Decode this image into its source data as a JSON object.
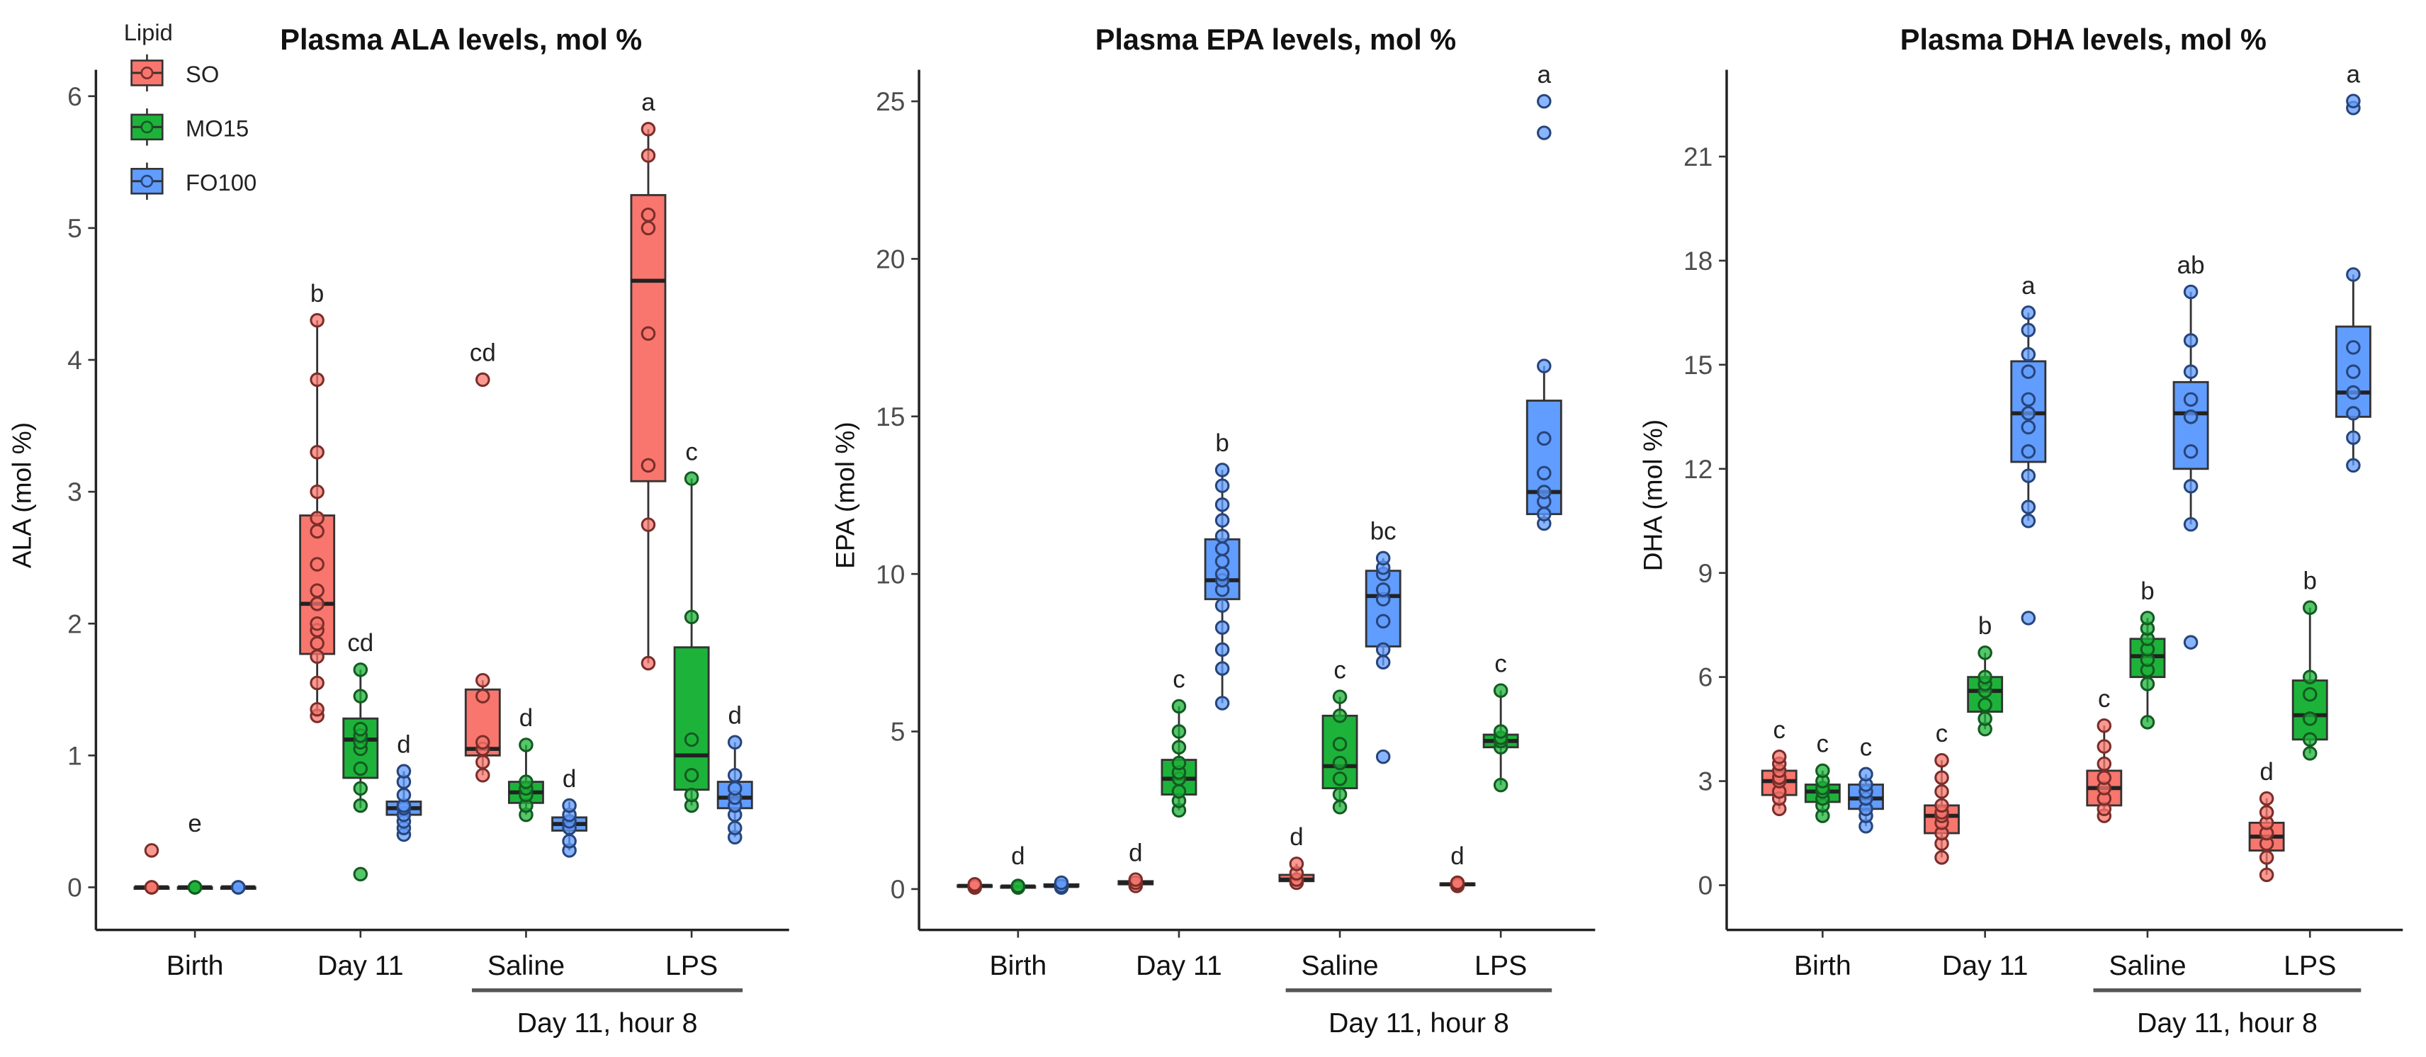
{
  "legend": {
    "title": "Lipid",
    "items": [
      {
        "name": "SO",
        "color": "#F8766D",
        "stroke": "#7A2E2A"
      },
      {
        "name": "MO15",
        "color": "#1DB33A",
        "stroke": "#145A22"
      },
      {
        "name": "FO100",
        "color": "#619CFF",
        "stroke": "#27457A"
      }
    ]
  },
  "x_groups": [
    "Birth",
    "Day 11",
    "Saline",
    "LPS"
  ],
  "x_bracket_label": "Day 11, hour 8",
  "chart_data": [
    {
      "type": "box",
      "title": "Plasma ALA levels, mol %",
      "ylabel": "ALA (mol %)",
      "ylim": [
        -0.3,
        6.2
      ],
      "yticks": [
        0,
        1,
        2,
        3,
        4,
        5,
        6
      ],
      "letters": [
        [
          null,
          "e",
          null
        ],
        [
          "b",
          "cd",
          "d"
        ],
        [
          "cd",
          "d",
          "d"
        ],
        [
          "a",
          "c",
          "d"
        ]
      ],
      "boxes": [
        [
          {
            "min": 0,
            "q1": 0,
            "median": 0,
            "q3": 0,
            "max": 0,
            "points": [
              0,
              0,
              0,
              0.28
            ]
          },
          {
            "min": 0,
            "q1": 0,
            "median": 0,
            "q3": 0,
            "max": 0,
            "points": [
              0,
              0,
              0
            ]
          },
          {
            "min": 0,
            "q1": 0,
            "median": 0,
            "q3": 0,
            "max": 0,
            "points": [
              0,
              0,
              0
            ]
          }
        ],
        [
          {
            "min": 1.3,
            "q1": 1.77,
            "median": 2.15,
            "q3": 2.82,
            "max": 4.3,
            "points": [
              1.3,
              1.35,
              1.55,
              1.75,
              1.85,
              1.95,
              2.0,
              2.15,
              2.25,
              2.45,
              2.7,
              2.8,
              3.0,
              3.3,
              3.85,
              4.3
            ]
          },
          {
            "min": 0.6,
            "q1": 0.83,
            "median": 1.12,
            "q3": 1.28,
            "max": 1.65,
            "points": [
              0.1,
              0.62,
              0.75,
              0.9,
              1.05,
              1.1,
              1.15,
              1.2,
              1.45,
              1.65
            ]
          },
          {
            "min": 0.4,
            "q1": 0.55,
            "median": 0.6,
            "q3": 0.65,
            "max": 0.88,
            "points": [
              0.4,
              0.45,
              0.5,
              0.55,
              0.6,
              0.62,
              0.7,
              0.8,
              0.88
            ]
          }
        ],
        [
          {
            "min": 0.85,
            "q1": 1.0,
            "median": 1.05,
            "q3": 1.5,
            "max": 1.57,
            "points": [
              0.85,
              0.95,
              1.05,
              1.1,
              1.45,
              1.57,
              3.85
            ]
          },
          {
            "min": 0.55,
            "q1": 0.64,
            "median": 0.72,
            "q3": 0.8,
            "max": 1.08,
            "points": [
              0.55,
              0.62,
              0.7,
              0.75,
              0.8,
              1.08
            ]
          },
          {
            "min": 0.28,
            "q1": 0.43,
            "median": 0.48,
            "q3": 0.53,
            "max": 0.65,
            "points": [
              0.28,
              0.35,
              0.45,
              0.5,
              0.55,
              0.62
            ]
          }
        ],
        [
          {
            "min": 1.7,
            "q1": 3.08,
            "median": 4.6,
            "q3": 5.25,
            "max": 5.75,
            "points": [
              1.7,
              2.75,
              3.2,
              4.2,
              5.0,
              5.1,
              5.55,
              5.75
            ]
          },
          {
            "min": 0.62,
            "q1": 0.74,
            "median": 1.0,
            "q3": 1.82,
            "max": 3.1,
            "points": [
              0.62,
              0.7,
              0.85,
              1.12,
              2.05,
              3.1
            ]
          },
          {
            "min": 0.38,
            "q1": 0.6,
            "median": 0.68,
            "q3": 0.8,
            "max": 1.1,
            "points": [
              0.38,
              0.45,
              0.55,
              0.62,
              0.68,
              0.75,
              0.85,
              1.1
            ]
          }
        ]
      ]
    },
    {
      "type": "box",
      "title": "Plasma EPA levels, mol %",
      "ylabel": "EPA (mol %)",
      "ylim": [
        -1.2,
        26
      ],
      "yticks": [
        0,
        5,
        10,
        15,
        20,
        25
      ],
      "letters": [
        [
          null,
          "d",
          null
        ],
        [
          "d",
          "c",
          "b"
        ],
        [
          "d",
          "c",
          "bc"
        ],
        [
          "d",
          "c",
          "a"
        ]
      ],
      "boxes": [
        [
          {
            "min": 0.05,
            "q1": 0.08,
            "median": 0.1,
            "q3": 0.12,
            "max": 0.15,
            "points": [
              0.05,
              0.1,
              0.15
            ]
          },
          {
            "min": 0.05,
            "q1": 0.07,
            "median": 0.08,
            "q3": 0.09,
            "max": 0.1,
            "points": [
              0.05,
              0.1
            ]
          },
          {
            "min": 0.05,
            "q1": 0.08,
            "median": 0.1,
            "q3": 0.15,
            "max": 0.2,
            "points": [
              0.05,
              0.1,
              0.2
            ]
          }
        ],
        [
          {
            "min": 0.1,
            "q1": 0.15,
            "median": 0.2,
            "q3": 0.25,
            "max": 0.3,
            "points": [
              0.1,
              0.2,
              0.3
            ]
          },
          {
            "min": 2.5,
            "q1": 3.0,
            "median": 3.5,
            "q3": 4.1,
            "max": 5.8,
            "points": [
              2.5,
              2.8,
              3.1,
              3.5,
              3.7,
              4.0,
              4.5,
              5.0,
              5.8
            ]
          },
          {
            "min": 5.9,
            "q1": 9.2,
            "median": 9.8,
            "q3": 11.1,
            "max": 13.3,
            "points": [
              5.9,
              7.0,
              7.6,
              8.3,
              9.0,
              9.5,
              9.8,
              10.0,
              10.4,
              10.8,
              11.2,
              11.7,
              12.2,
              12.8,
              13.3
            ]
          }
        ],
        [
          {
            "min": 0.2,
            "q1": 0.25,
            "median": 0.3,
            "q3": 0.45,
            "max": 0.8,
            "points": [
              0.2,
              0.3,
              0.5,
              0.8
            ]
          },
          {
            "min": 2.6,
            "q1": 3.2,
            "median": 3.9,
            "q3": 5.5,
            "max": 6.1,
            "points": [
              2.6,
              3.0,
              3.5,
              4.0,
              4.6,
              5.5,
              6.1
            ]
          },
          {
            "min": 7.1,
            "q1": 7.7,
            "median": 9.3,
            "q3": 10.1,
            "max": 10.5,
            "points": [
              4.2,
              7.2,
              7.6,
              8.5,
              9.2,
              9.5,
              10.0,
              10.2,
              10.5
            ]
          }
        ],
        [
          {
            "min": 0.1,
            "q1": 0.12,
            "median": 0.15,
            "q3": 0.18,
            "max": 0.2,
            "points": [
              0.1,
              0.15,
              0.2
            ]
          },
          {
            "min": 3.3,
            "q1": 4.5,
            "median": 4.7,
            "q3": 4.9,
            "max": 6.3,
            "points": [
              3.3,
              4.5,
              4.7,
              4.8,
              5.0,
              6.3
            ]
          },
          {
            "min": 11.6,
            "q1": 11.9,
            "median": 12.6,
            "q3": 15.5,
            "max": 16.6,
            "points": [
              11.6,
              11.9,
              12.3,
              12.6,
              13.2,
              14.3,
              16.6,
              24.0,
              25.0
            ]
          }
        ]
      ]
    },
    {
      "type": "box",
      "title": "Plasma DHA levels, mol %",
      "ylabel": "DHA (mol %)",
      "ylim": [
        -1.2,
        23.5
      ],
      "yticks": [
        0,
        3,
        6,
        9,
        12,
        15,
        18,
        21
      ],
      "letters": [
        [
          "c",
          "c",
          "c"
        ],
        [
          "c",
          "b",
          "a"
        ],
        [
          "c",
          "b",
          "ab"
        ],
        [
          "d",
          "b",
          "a"
        ]
      ],
      "boxes": [
        [
          {
            "min": 2.2,
            "q1": 2.6,
            "median": 3.0,
            "q3": 3.3,
            "max": 3.7,
            "points": [
              2.2,
              2.5,
              2.7,
              3.0,
              3.1,
              3.3,
              3.5,
              3.7
            ]
          },
          {
            "min": 2.0,
            "q1": 2.4,
            "median": 2.7,
            "q3": 2.9,
            "max": 3.3,
            "points": [
              2.0,
              2.3,
              2.5,
              2.7,
              2.8,
              3.0,
              3.3
            ]
          },
          {
            "min": 1.7,
            "q1": 2.2,
            "median": 2.5,
            "q3": 2.9,
            "max": 3.2,
            "points": [
              1.7,
              2.0,
              2.2,
              2.5,
              2.7,
              2.9,
              3.2
            ]
          }
        ],
        [
          {
            "min": 0.8,
            "q1": 1.5,
            "median": 2.0,
            "q3": 2.3,
            "max": 3.6,
            "points": [
              0.8,
              1.2,
              1.5,
              1.8,
              2.0,
              2.1,
              2.3,
              2.7,
              3.1,
              3.6
            ]
          },
          {
            "min": 4.5,
            "q1": 5.0,
            "median": 5.6,
            "q3": 6.0,
            "max": 6.7,
            "points": [
              4.5,
              4.8,
              5.2,
              5.6,
              5.8,
              6.0,
              6.7
            ]
          },
          {
            "min": 10.5,
            "q1": 12.2,
            "median": 13.6,
            "q3": 15.1,
            "max": 16.5,
            "points": [
              7.7,
              10.5,
              10.9,
              11.8,
              12.5,
              13.2,
              13.6,
              14.0,
              14.8,
              15.3,
              16.0,
              16.5
            ]
          }
        ],
        [
          {
            "min": 2.0,
            "q1": 2.3,
            "median": 2.8,
            "q3": 3.3,
            "max": 4.6,
            "points": [
              2.0,
              2.2,
              2.5,
              2.8,
              3.1,
              3.5,
              4.0,
              4.6
            ]
          },
          {
            "min": 4.7,
            "q1": 6.0,
            "median": 6.6,
            "q3": 7.1,
            "max": 7.7,
            "points": [
              4.7,
              5.8,
              6.2,
              6.5,
              6.8,
              7.1,
              7.4,
              7.7
            ]
          },
          {
            "min": 10.4,
            "q1": 12.0,
            "median": 13.6,
            "q3": 14.5,
            "max": 17.1,
            "points": [
              7.0,
              10.4,
              11.5,
              12.5,
              13.5,
              14.0,
              14.8,
              15.7,
              17.1
            ]
          }
        ],
        [
          {
            "min": 0.3,
            "q1": 1.0,
            "median": 1.4,
            "q3": 1.8,
            "max": 2.5,
            "points": [
              0.3,
              0.8,
              1.2,
              1.5,
              1.8,
              2.1,
              2.5
            ]
          },
          {
            "min": 3.8,
            "q1": 4.2,
            "median": 4.9,
            "q3": 5.9,
            "max": 8.0,
            "points": [
              3.8,
              4.2,
              4.8,
              5.5,
              6.0,
              8.0
            ]
          },
          {
            "min": 12.1,
            "q1": 13.5,
            "median": 14.2,
            "q3": 16.1,
            "max": 17.6,
            "points": [
              12.1,
              12.9,
              13.6,
              14.2,
              14.8,
              15.5,
              17.6,
              22.4,
              22.6
            ]
          }
        ]
      ]
    }
  ]
}
